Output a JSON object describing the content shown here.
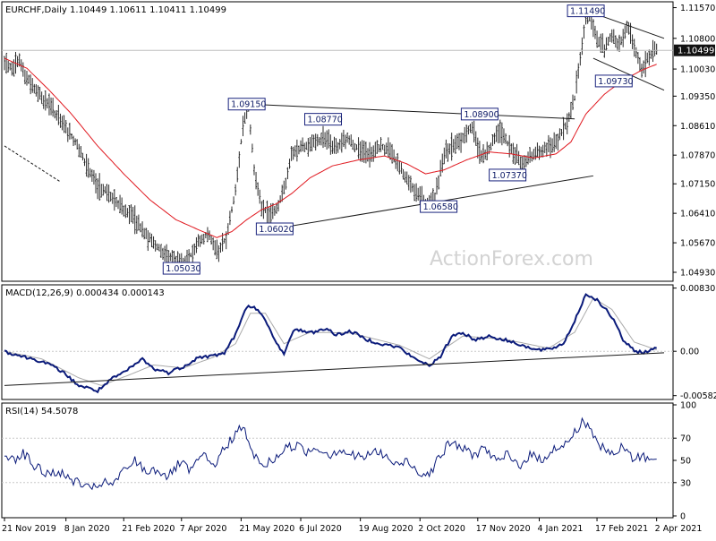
{
  "header": {
    "symbol_line": "EURCHF,Daily  1.10449 1.10611 1.10411 1.10499",
    "macd_label": "MACD(12,26,9) 0.000434 0.000143",
    "rsi_label": "RSI(14) 54.5078"
  },
  "watermark": "ActionForex.com",
  "current_price_label": "1.10499",
  "colors": {
    "candles": "#2b2b2b",
    "ma": "#e0181f",
    "macd": "#0a1a7a",
    "signal": "#aaaaaa",
    "trendline": "#1a1a1a",
    "price_tag_bg": "#111111",
    "annotation_border": "#1a237e",
    "grid": "#c8c8c8"
  },
  "chart_data": [
    {
      "type": "candlestick",
      "title": "EURCHF,Daily",
      "ylim": [
        1.0475,
        1.1165
      ],
      "y_ticks": [
        "1.11570",
        "1.10800",
        "1.10030",
        "1.09350",
        "1.08610",
        "1.07870",
        "1.07150",
        "1.06410",
        "1.05670",
        "1.04930"
      ],
      "x_ticks": [
        "21 Nov 2019",
        "8 Jan 2020",
        "21 Feb 2020",
        "7 Apr 2020",
        "21 May 2020",
        "6 Jul 2020",
        "19 Aug 2020",
        "2 Oct 2020",
        "17 Nov 2020",
        "4 Jan 2021",
        "17 Feb 2021",
        "2 Apr 2021"
      ],
      "price_anchors": [
        [
          0,
          1.102
        ],
        [
          4,
          1.101
        ],
        [
          8,
          1.103
        ],
        [
          11,
          1.0985
        ],
        [
          18,
          1.0945
        ],
        [
          25,
          1.0905
        ],
        [
          32,
          1.086
        ],
        [
          38,
          1.082
        ],
        [
          44,
          1.076
        ],
        [
          50,
          1.071
        ],
        [
          56,
          1.069
        ],
        [
          62,
          1.066
        ],
        [
          68,
          1.064
        ],
        [
          74,
          1.06
        ],
        [
          80,
          1.0565
        ],
        [
          86,
          1.054
        ],
        [
          92,
          1.0525
        ],
        [
          98,
          1.052
        ],
        [
          103,
          1.056
        ],
        [
          109,
          1.059
        ],
        [
          115,
          1.0545
        ],
        [
          119,
          1.058
        ],
        [
          124,
          1.07
        ],
        [
          128,
          1.086
        ],
        [
          131,
          1.0905
        ],
        [
          134,
          1.075
        ],
        [
          138,
          1.066
        ],
        [
          142,
          1.064
        ],
        [
          146,
          1.065
        ],
        [
          150,
          1.07
        ],
        [
          154,
          1.079
        ],
        [
          160,
          1.081
        ],
        [
          166,
          1.082
        ],
        [
          172,
          1.083
        ],
        [
          178,
          1.08
        ],
        [
          184,
          1.083
        ],
        [
          190,
          1.08
        ],
        [
          196,
          1.079
        ],
        [
          202,
          1.081
        ],
        [
          208,
          1.079
        ],
        [
          214,
          1.074
        ],
        [
          220,
          1.07
        ],
        [
          226,
          1.067
        ],
        [
          231,
          1.068
        ],
        [
          236,
          1.079
        ],
        [
          241,
          1.081
        ],
        [
          246,
          1.083
        ],
        [
          251,
          1.086
        ],
        [
          256,
          1.078
        ],
        [
          261,
          1.081
        ],
        [
          266,
          1.085
        ],
        [
          272,
          1.08
        ],
        [
          278,
          1.076
        ],
        [
          284,
          1.079
        ],
        [
          290,
          1.08
        ],
        [
          296,
          1.0815
        ],
        [
          302,
          1.087
        ],
        [
          306,
          1.093
        ],
        [
          309,
          1.103
        ],
        [
          312,
          1.113
        ],
        [
          314,
          1.114
        ],
        [
          318,
          1.108
        ],
        [
          322,
          1.105
        ],
        [
          326,
          1.109
        ],
        [
          330,
          1.106
        ],
        [
          334,
          1.111
        ],
        [
          338,
          1.106
        ],
        [
          342,
          1.1
        ],
        [
          346,
          1.104
        ],
        [
          350,
          1.105
        ]
      ],
      "ma_anchors": [
        [
          0,
          1.103
        ],
        [
          12,
          1.1005
        ],
        [
          24,
          1.095
        ],
        [
          36,
          1.089
        ],
        [
          50,
          1.081
        ],
        [
          64,
          1.074
        ],
        [
          78,
          1.0675
        ],
        [
          92,
          1.0625
        ],
        [
          104,
          1.06
        ],
        [
          114,
          1.058
        ],
        [
          122,
          1.0595
        ],
        [
          130,
          1.0625
        ],
        [
          138,
          1.065
        ],
        [
          146,
          1.0665
        ],
        [
          154,
          1.069
        ],
        [
          164,
          1.073
        ],
        [
          176,
          1.076
        ],
        [
          190,
          1.0775
        ],
        [
          204,
          1.0785
        ],
        [
          216,
          1.0765
        ],
        [
          226,
          1.074
        ],
        [
          236,
          1.075
        ],
        [
          248,
          1.0775
        ],
        [
          260,
          1.0795
        ],
        [
          272,
          1.079
        ],
        [
          284,
          1.078
        ],
        [
          296,
          1.079
        ],
        [
          304,
          1.082
        ],
        [
          312,
          1.089
        ],
        [
          322,
          1.094
        ],
        [
          332,
          1.0975
        ],
        [
          342,
          1.1
        ],
        [
          350,
          1.1015
        ]
      ],
      "annotations": [
        {
          "label": "1.11490",
          "bar": 312,
          "price": 1.1149
        },
        {
          "label": "1.09730",
          "bar": 327,
          "price": 1.0973
        },
        {
          "label": "1.09150",
          "bar": 130,
          "price": 1.0915
        },
        {
          "label": "1.08770",
          "bar": 171,
          "price": 1.0877
        },
        {
          "label": "1.08900",
          "bar": 255,
          "price": 1.089
        },
        {
          "label": "1.07370",
          "bar": 270,
          "price": 1.0737
        },
        {
          "label": "1.06580",
          "bar": 233,
          "price": 1.0658
        },
        {
          "label": "1.06020",
          "bar": 145,
          "price": 1.0602
        },
        {
          "label": "1.05030",
          "bar": 95,
          "price": 1.0503
        }
      ],
      "trendlines": [
        {
          "from": [
            131,
            1.0915
          ],
          "to": [
            306,
            1.0878
          ],
          "style": "solid"
        },
        {
          "from": [
            142,
            1.06
          ],
          "to": [
            316,
            1.0735
          ],
          "style": "solid"
        },
        {
          "from": [
            312,
            1.115
          ],
          "to": [
            354,
            1.108
          ],
          "style": "solid"
        },
        {
          "from": [
            316,
            1.103
          ],
          "to": [
            354,
            1.095
          ],
          "style": "solid"
        },
        {
          "from": [
            0,
            1.081
          ],
          "to": [
            30,
            1.072
          ],
          "style": "dashed"
        }
      ],
      "current_price": 1.10499
    },
    {
      "type": "line",
      "title": "MACD(12,26,9)",
      "ylim": [
        -0.0061,
        0.0085
      ],
      "y_ticks": [
        "0.008307",
        "0.00",
        "-0.005828"
      ],
      "series": [
        {
          "name": "MACD",
          "anchors": [
            [
              0,
              0.0
            ],
            [
              10,
              -0.0007
            ],
            [
              20,
              -0.0013
            ],
            [
              30,
              -0.0025
            ],
            [
              40,
              -0.0045
            ],
            [
              50,
              -0.0052
            ],
            [
              58,
              -0.0036
            ],
            [
              66,
              -0.0025
            ],
            [
              74,
              -0.001
            ],
            [
              80,
              -0.0023
            ],
            [
              88,
              -0.0028
            ],
            [
              96,
              -0.002
            ],
            [
              104,
              -0.0008
            ],
            [
              112,
              -0.0006
            ],
            [
              118,
              -0.0002
            ],
            [
              124,
              0.0022
            ],
            [
              130,
              0.0058
            ],
            [
              134,
              0.006
            ],
            [
              140,
              0.004
            ],
            [
              146,
              0.001
            ],
            [
              150,
              -0.0002
            ],
            [
              156,
              0.003
            ],
            [
              164,
              0.0024
            ],
            [
              172,
              0.003
            ],
            [
              178,
              0.0022
            ],
            [
              186,
              0.0026
            ],
            [
              194,
              0.0016
            ],
            [
              202,
              0.001
            ],
            [
              212,
              0.0005
            ],
            [
              220,
              -0.001
            ],
            [
              228,
              -0.0018
            ],
            [
              234,
              -0.0008
            ],
            [
              240,
              0.002
            ],
            [
              246,
              0.0025
            ],
            [
              252,
              0.0015
            ],
            [
              260,
              0.002
            ],
            [
              268,
              0.0015
            ],
            [
              276,
              0.001
            ],
            [
              284,
              0.0002
            ],
            [
              292,
              0.0002
            ],
            [
              300,
              0.001
            ],
            [
              306,
              0.004
            ],
            [
              312,
              0.0075
            ],
            [
              318,
              0.0068
            ],
            [
              326,
              0.0045
            ],
            [
              332,
              0.0015
            ],
            [
              338,
              0.0
            ],
            [
              344,
              -0.0001
            ],
            [
              350,
              0.0004
            ]
          ]
        },
        {
          "name": "Signal",
          "anchors": [
            [
              0,
              0.0
            ],
            [
              20,
              -0.001
            ],
            [
              40,
              -0.0035
            ],
            [
              52,
              -0.0045
            ],
            [
              66,
              -0.0032
            ],
            [
              80,
              -0.0018
            ],
            [
              96,
              -0.0022
            ],
            [
              112,
              -0.0008
            ],
            [
              124,
              0.001
            ],
            [
              132,
              0.005
            ],
            [
              140,
              0.005
            ],
            [
              150,
              0.001
            ],
            [
              164,
              0.0025
            ],
            [
              186,
              0.0024
            ],
            [
              212,
              0.0008
            ],
            [
              228,
              -0.001
            ],
            [
              246,
              0.002
            ],
            [
              268,
              0.0016
            ],
            [
              292,
              0.0004
            ],
            [
              306,
              0.0025
            ],
            [
              316,
              0.007
            ],
            [
              326,
              0.0055
            ],
            [
              338,
              0.0012
            ],
            [
              350,
              0.0002
            ]
          ]
        }
      ],
      "trendline": {
        "from": [
          0,
          -0.0045
        ],
        "to": [
          354,
          -0.0002
        ]
      }
    },
    {
      "type": "line",
      "title": "RSI(14)",
      "ylim": [
        0,
        100
      ],
      "y_ticks": [
        "100",
        "70",
        "50",
        "30",
        "0"
      ],
      "levels": [
        70,
        30
      ],
      "series": [
        {
          "name": "RSI",
          "anchors": [
            [
              0,
              55
            ],
            [
              6,
              52
            ],
            [
              10,
              57
            ],
            [
              16,
              45
            ],
            [
              22,
              38
            ],
            [
              28,
              40
            ],
            [
              34,
              34
            ],
            [
              40,
              30
            ],
            [
              46,
              23
            ],
            [
              52,
              30
            ],
            [
              58,
              28
            ],
            [
              64,
              40
            ],
            [
              70,
              50
            ],
            [
              76,
              40
            ],
            [
              82,
              42
            ],
            [
              88,
              35
            ],
            [
              94,
              48
            ],
            [
              100,
              40
            ],
            [
              106,
              55
            ],
            [
              112,
              45
            ],
            [
              118,
              60
            ],
            [
              124,
              75
            ],
            [
              128,
              80
            ],
            [
              132,
              60
            ],
            [
              138,
              45
            ],
            [
              144,
              50
            ],
            [
              150,
              60
            ],
            [
              156,
              64
            ],
            [
              162,
              58
            ],
            [
              168,
              62
            ],
            [
              174,
              55
            ],
            [
              180,
              60
            ],
            [
              186,
              55
            ],
            [
              192,
              52
            ],
            [
              198,
              58
            ],
            [
              204,
              55
            ],
            [
              210,
              45
            ],
            [
              216,
              50
            ],
            [
              222,
              40
            ],
            [
              228,
              38
            ],
            [
              234,
              55
            ],
            [
              240,
              67
            ],
            [
              246,
              60
            ],
            [
              252,
              55
            ],
            [
              258,
              62
            ],
            [
              264,
              48
            ],
            [
              270,
              55
            ],
            [
              276,
              45
            ],
            [
              282,
              55
            ],
            [
              288,
              50
            ],
            [
              294,
              60
            ],
            [
              300,
              62
            ],
            [
              306,
              75
            ],
            [
              310,
              85
            ],
            [
              314,
              80
            ],
            [
              320,
              62
            ],
            [
              326,
              55
            ],
            [
              332,
              62
            ],
            [
              338,
              50
            ],
            [
              342,
              55
            ],
            [
              346,
              50
            ],
            [
              350,
              55
            ]
          ]
        }
      ]
    }
  ]
}
